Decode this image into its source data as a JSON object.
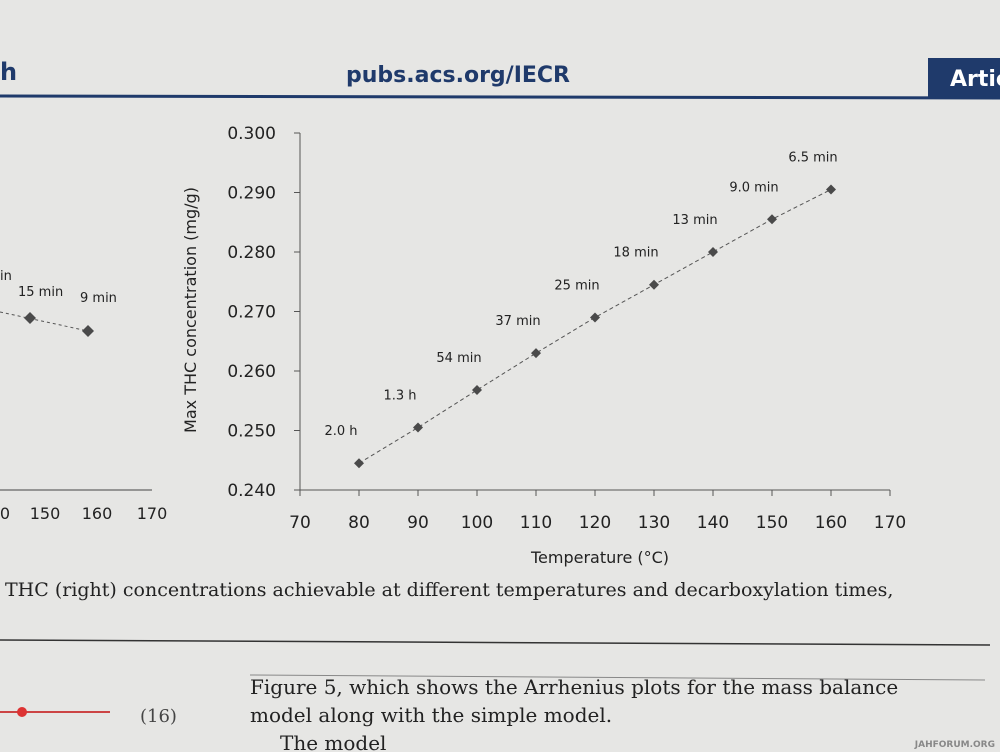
{
  "header": {
    "left": "h",
    "center": "pubs.acs.org/IECR",
    "right": "Artic"
  },
  "chart_data": {
    "type": "scatter",
    "x": [
      80,
      90,
      100,
      110,
      120,
      130,
      140,
      150,
      160
    ],
    "y": [
      0.2445,
      0.2505,
      0.2568,
      0.263,
      0.269,
      0.2745,
      0.28,
      0.2855,
      0.2905
    ],
    "point_labels": [
      "2.0 h",
      "1.3 h",
      "54 min",
      "37 min",
      "25 min",
      "18 min",
      "13 min",
      "9.0 min",
      "6.5 min"
    ],
    "xlabel": "Temperature (°C)",
    "ylabel": "Max THC concentration (mg/g)",
    "xlim": [
      70,
      170
    ],
    "xticks": [
      70,
      80,
      90,
      100,
      110,
      120,
      130,
      140,
      150,
      160,
      170
    ],
    "ylim": [
      0.24,
      0.3
    ],
    "yticks": [
      {
        "value": 0.24,
        "label": "0.240"
      },
      {
        "value": 0.25,
        "label": "0.250"
      },
      {
        "value": 0.26,
        "label": "0.260"
      },
      {
        "value": 0.27,
        "label": "0.270"
      },
      {
        "value": 0.28,
        "label": "0.280"
      },
      {
        "value": 0.29,
        "label": "0.290"
      },
      {
        "value": 0.3,
        "label": "0.300"
      }
    ],
    "color": "#4a4a4a",
    "trendline": "dashed"
  },
  "left_fragment": {
    "xtick_labels": [
      "0",
      "150",
      "160",
      "170"
    ],
    "point_labels": [
      "in",
      "15 min",
      "9 min"
    ]
  },
  "body": {
    "caption_line": "THC (right) concentrations achievable at different temperatures and decarboxylation times,",
    "paragraph_lines": [
      "Figure 5, which shows the Arrhenius plots for the mass balance",
      "model along with the simple model.",
      "The model"
    ],
    "equation_number": "(16)"
  },
  "watermark": "JAHFORUM.ORG"
}
